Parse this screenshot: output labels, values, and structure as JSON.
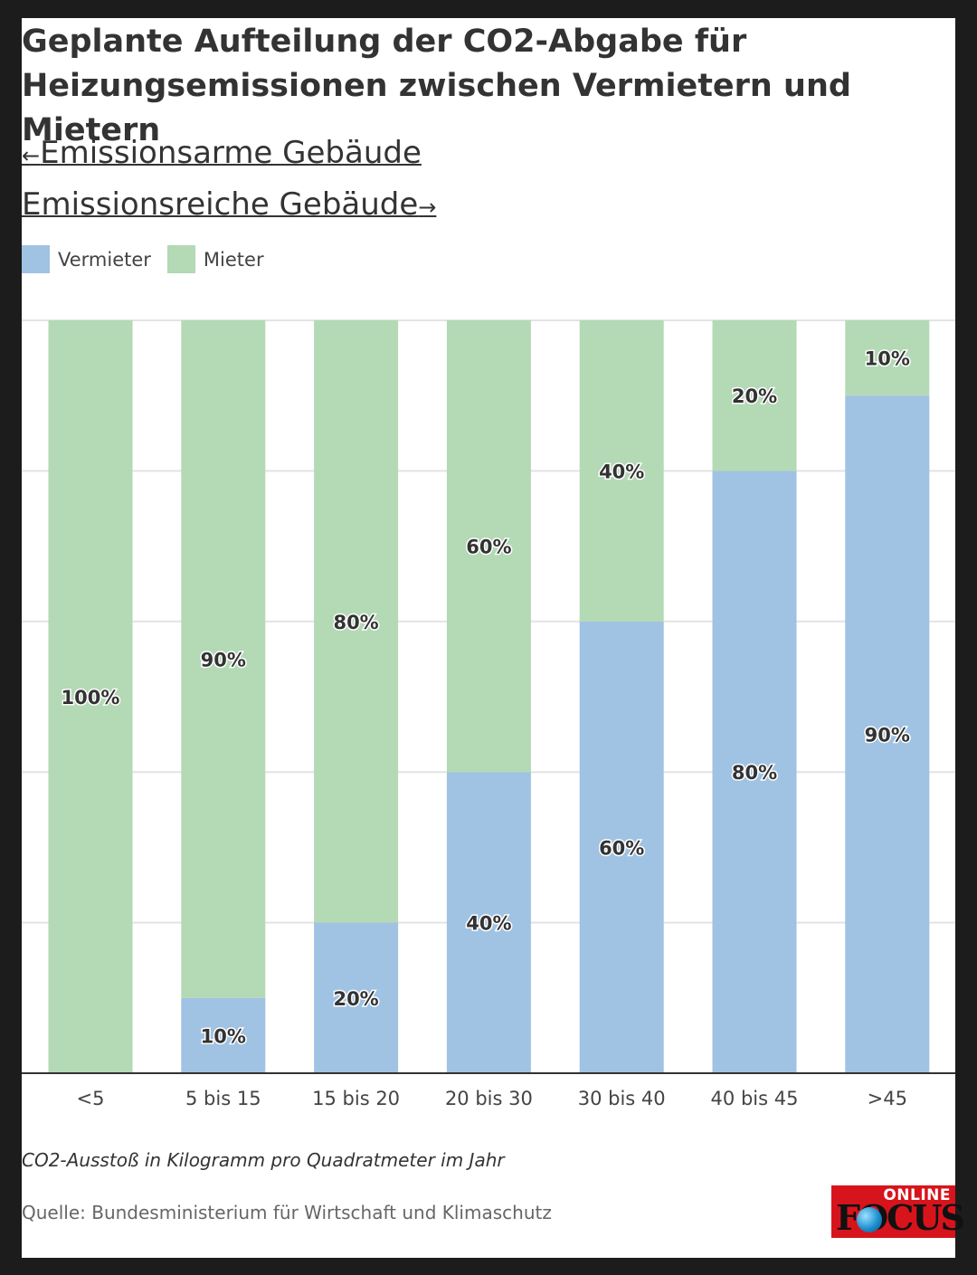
{
  "title": "Geplante Aufteilung der CO2-Abgabe für Heizungsemissionen zwischen Vermietern und Mietern",
  "subtitle": {
    "left_arrow": "←",
    "left": "Emissionsarme Gebäude",
    "right": "Emissionsreiche Gebäude",
    "right_arrow": "→"
  },
  "legend": [
    {
      "label": "Vermieter",
      "color": "#a0c2e3"
    },
    {
      "label": "Mieter",
      "color": "#b3d9b5"
    }
  ],
  "chart_data": {
    "type": "bar",
    "stacked": true,
    "categories": [
      "<5",
      "5 bis 15",
      "15 bis 20",
      "20 bis 30",
      "30 bis 40",
      "40 bis 45",
      ">45"
    ],
    "series": [
      {
        "name": "Vermieter",
        "color": "#a0c2e3",
        "values": [
          0,
          10,
          20,
          40,
          60,
          80,
          90
        ]
      },
      {
        "name": "Mieter",
        "color": "#b3d9b5",
        "values": [
          100,
          90,
          80,
          60,
          40,
          20,
          10
        ]
      }
    ],
    "ylim": [
      0,
      100
    ],
    "y_gridlines": [
      0,
      20,
      40,
      60,
      80,
      100
    ],
    "value_suffix": "%",
    "grid": true,
    "legend_position": "top-left"
  },
  "note": "CO2-Ausstoß in Kilogramm pro Quadratmeter im Jahr",
  "source": "Quelle: Bundesministerium für Wirtschaft und Klimaschutz",
  "logo": {
    "top": "ONLINE",
    "main": "FOCUS"
  }
}
